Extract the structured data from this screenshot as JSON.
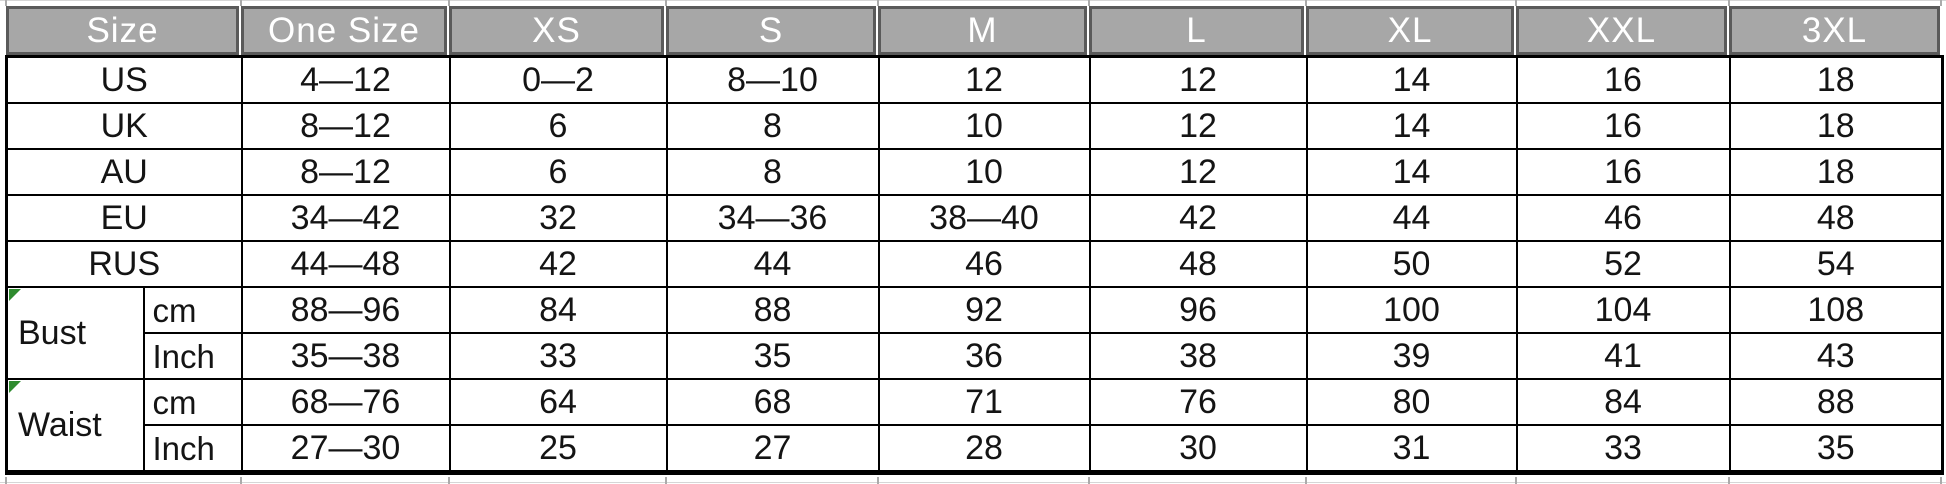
{
  "table": {
    "header_labels": [
      "Size",
      "One Size",
      "XS",
      "S",
      "M",
      "L",
      "XL",
      "XXL",
      "3XL"
    ],
    "region_rows": [
      {
        "label": "US",
        "values": [
          "4—12",
          "0—2",
          "8—10",
          "12",
          "12",
          "14",
          "16",
          "18"
        ]
      },
      {
        "label": "UK",
        "values": [
          "8—12",
          "6",
          "8",
          "10",
          "12",
          "14",
          "16",
          "18"
        ]
      },
      {
        "label": "AU",
        "values": [
          "8—12",
          "6",
          "8",
          "10",
          "12",
          "14",
          "16",
          "18"
        ]
      },
      {
        "label": "EU",
        "values": [
          "34—42",
          "32",
          "34—36",
          "38—40",
          "42",
          "44",
          "46",
          "48"
        ]
      },
      {
        "label": "RUS",
        "values": [
          "44—48",
          "42",
          "44",
          "46",
          "48",
          "50",
          "52",
          "54"
        ]
      }
    ],
    "measure_rows": [
      {
        "label": "Bust",
        "units": [
          {
            "unit": "cm",
            "values": [
              "88—96",
              "84",
              "88",
              "92",
              "96",
              "100",
              "104",
              "108"
            ]
          },
          {
            "unit": "Inch",
            "values": [
              "35—38",
              "33",
              "35",
              "36",
              "38",
              "39",
              "41",
              "43"
            ]
          }
        ]
      },
      {
        "label": "Waist",
        "units": [
          {
            "unit": "cm",
            "values": [
              "68—76",
              "64",
              "68",
              "71",
              "76",
              "80",
              "84",
              "88"
            ]
          },
          {
            "unit": "Inch",
            "values": [
              "27—30",
              "25",
              "27",
              "28",
              "30",
              "31",
              "33",
              "35"
            ]
          }
        ]
      }
    ]
  },
  "colors": {
    "header_bg": "#a7a7a7",
    "header_border": "#5a5a5a",
    "header_text": "#ffffff",
    "body_border": "#000000",
    "error_indicator": "#2e8b2e"
  }
}
